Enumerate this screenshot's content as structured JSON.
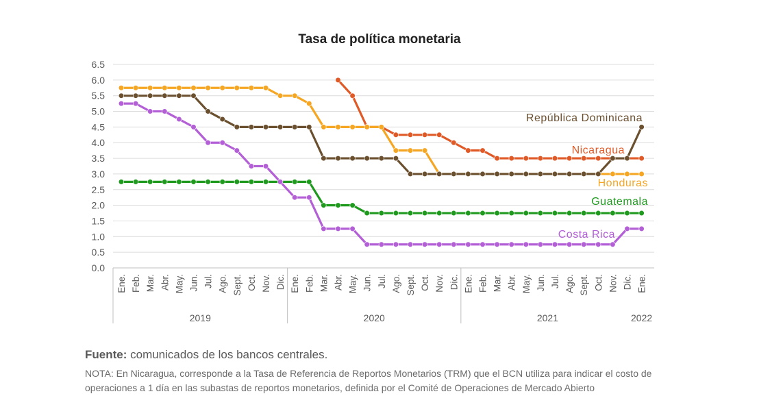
{
  "chart_data": {
    "type": "line",
    "title": "Tasa de política monetaria",
    "yticks": [
      "6.5",
      "6.0",
      "5.5",
      "5.0",
      "4.5",
      "4.0",
      "3.5",
      "3.0",
      "2.5",
      "2.0",
      "1.5",
      "1.0",
      "0.5",
      "0.0"
    ],
    "ylim": [
      0,
      6.5
    ],
    "grid": true,
    "x": [
      "Ene.",
      "Feb.",
      "Mar.",
      "Abr.",
      "May.",
      "Jun.",
      "Jul.",
      "Ago.",
      "Sept.",
      "Oct.",
      "Nov.",
      "Dic.",
      "Ene.",
      "Feb.",
      "Mar.",
      "Abr.",
      "May.",
      "Jun.",
      "Jul.",
      "Ago.",
      "Sept.",
      "Oct.",
      "Nov.",
      "Dic.",
      "Ene.",
      "Feb.",
      "Mar.",
      "Abr.",
      "May.",
      "Jun.",
      "Jul.",
      "Ago.",
      "Sept.",
      "Oct.",
      "Nov.",
      "Dic.",
      "Ene."
    ],
    "years": [
      "2019",
      "2020",
      "2021",
      "2022"
    ],
    "series": [
      {
        "name": "República Dominicana",
        "color": "#6b5030",
        "values": [
          5.5,
          5.5,
          5.5,
          5.5,
          5.5,
          5.5,
          5.0,
          4.75,
          4.5,
          4.5,
          4.5,
          4.5,
          4.5,
          4.5,
          3.5,
          3.5,
          3.5,
          3.5,
          3.5,
          3.5,
          3.0,
          3.0,
          3.0,
          3.0,
          3.0,
          3.0,
          3.0,
          3.0,
          3.0,
          3.0,
          3.0,
          3.0,
          3.0,
          3.0,
          3.5,
          3.5,
          4.5
        ]
      },
      {
        "name": "Nicaragua",
        "color": "#e05a28",
        "values": [
          null,
          null,
          null,
          null,
          null,
          null,
          null,
          null,
          null,
          null,
          null,
          null,
          null,
          null,
          null,
          6.0,
          5.5,
          4.5,
          4.5,
          4.25,
          4.25,
          4.25,
          4.25,
          4.0,
          3.75,
          3.75,
          3.5,
          3.5,
          3.5,
          3.5,
          3.5,
          3.5,
          3.5,
          3.5,
          3.5,
          3.5,
          3.5
        ]
      },
      {
        "name": "Honduras",
        "color": "#f5a623",
        "values": [
          5.75,
          5.75,
          5.75,
          5.75,
          5.75,
          5.75,
          5.75,
          5.75,
          5.75,
          5.75,
          5.75,
          5.5,
          5.5,
          5.25,
          4.5,
          4.5,
          4.5,
          4.5,
          4.5,
          3.75,
          3.75,
          3.75,
          3.0,
          3.0,
          3.0,
          3.0,
          3.0,
          3.0,
          3.0,
          3.0,
          3.0,
          3.0,
          3.0,
          3.0,
          3.0,
          3.0,
          3.0
        ]
      },
      {
        "name": "Guatemala",
        "color": "#1f9a1f",
        "values": [
          2.75,
          2.75,
          2.75,
          2.75,
          2.75,
          2.75,
          2.75,
          2.75,
          2.75,
          2.75,
          2.75,
          2.75,
          2.75,
          2.75,
          2.0,
          2.0,
          2.0,
          1.75,
          1.75,
          1.75,
          1.75,
          1.75,
          1.75,
          1.75,
          1.75,
          1.75,
          1.75,
          1.75,
          1.75,
          1.75,
          1.75,
          1.75,
          1.75,
          1.75,
          1.75,
          1.75,
          1.75
        ]
      },
      {
        "name": "Costa Rica",
        "color": "#b35fd6",
        "values": [
          5.25,
          5.25,
          5.0,
          5.0,
          4.75,
          4.5,
          4.0,
          4.0,
          3.75,
          3.25,
          3.25,
          2.75,
          2.25,
          2.25,
          1.25,
          1.25,
          1.25,
          0.75,
          0.75,
          0.75,
          0.75,
          0.75,
          0.75,
          0.75,
          0.75,
          0.75,
          0.75,
          0.75,
          0.75,
          0.75,
          0.75,
          0.75,
          0.75,
          0.75,
          0.75,
          1.25,
          1.25
        ]
      }
    ]
  },
  "source": {
    "label": "Fuente:",
    "text": " comunicados de los bancos centrales."
  },
  "note": "NOTA: En Nicaragua, corresponde a la Tasa de Referencia de Reportos Monetarios (TRM) que el BCN utiliza para indicar el costo de operaciones a 1 día en las subastas de reportos monetarios, definida por el Comité de Operaciones de Mercado Abierto"
}
